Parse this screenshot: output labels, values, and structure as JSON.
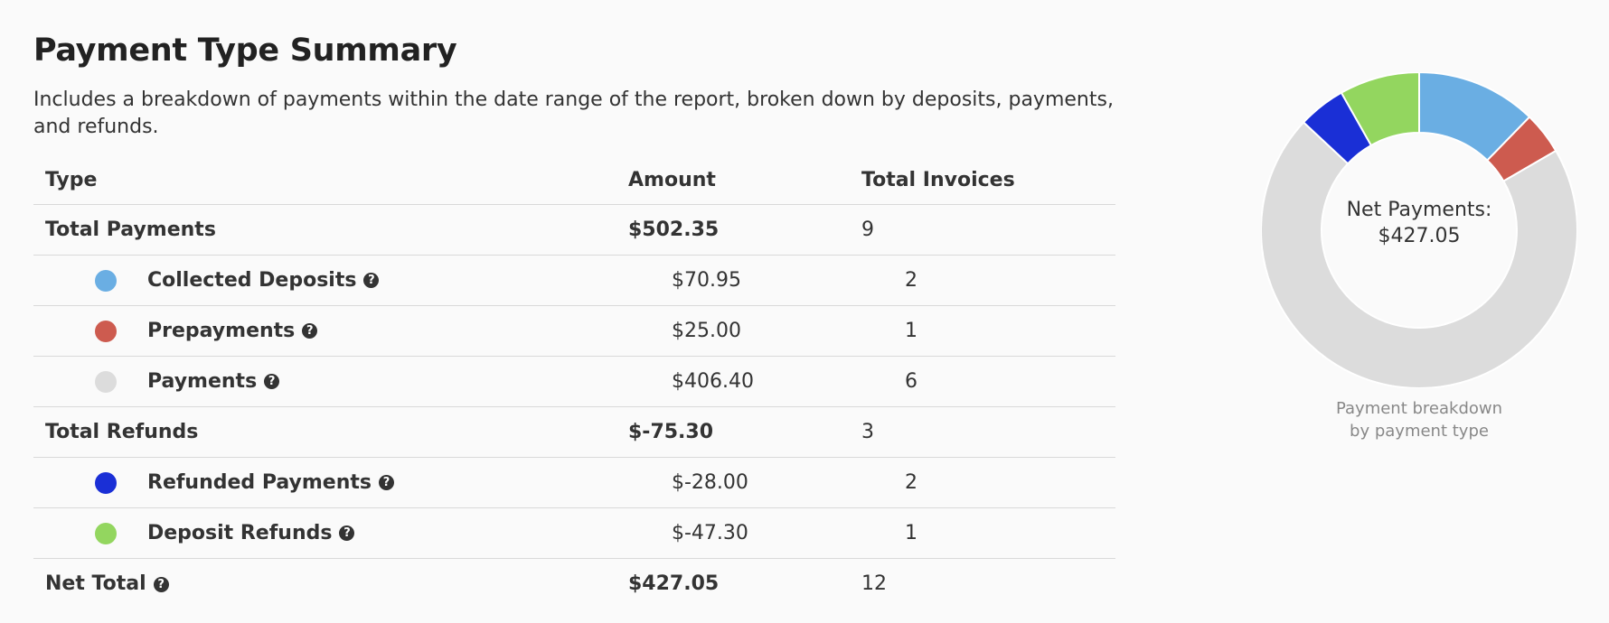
{
  "header": {
    "title": "Payment Type Summary",
    "description": "Includes a breakdown of payments within the date range of the report, broken down by deposits, payments, and refunds."
  },
  "table": {
    "columns": [
      "Type",
      "Amount",
      "Total Invoices"
    ],
    "rows": [
      {
        "label": "Total Payments",
        "amount": "$502.35",
        "count": "9",
        "kind": "total"
      },
      {
        "label": "Collected Deposits",
        "amount": "$70.95",
        "count": "2",
        "kind": "sub",
        "color": "#6aaee3",
        "help": true
      },
      {
        "label": "Prepayments",
        "amount": "$25.00",
        "count": "1",
        "kind": "sub",
        "color": "#cd5b4f",
        "help": true
      },
      {
        "label": "Payments",
        "amount": "$406.40",
        "count": "6",
        "kind": "sub",
        "color": "#dcdcdc",
        "help": true
      },
      {
        "label": "Total Refunds",
        "amount": "$-75.30",
        "count": "3",
        "kind": "total"
      },
      {
        "label": "Refunded Payments",
        "amount": "$-28.00",
        "count": "2",
        "kind": "sub",
        "color": "#1a2fd6",
        "help": true
      },
      {
        "label": "Deposit Refunds",
        "amount": "$-47.30",
        "count": "1",
        "kind": "sub",
        "color": "#93d65f",
        "help": true
      },
      {
        "label": "Net Total",
        "amount": "$427.05",
        "count": "12",
        "kind": "total",
        "help": true
      }
    ],
    "help_glyph": "?"
  },
  "donut": {
    "center_label": "Net Payments:",
    "center_value": "$427.05",
    "caption_line1": "Payment breakdown",
    "caption_line2": "by payment type",
    "slices": [
      {
        "name": "Collected Deposits",
        "value": 70.95,
        "color": "#6aaee3"
      },
      {
        "name": "Prepayments",
        "value": 25.0,
        "color": "#cd5b4f"
      },
      {
        "name": "Payments",
        "value": 406.4,
        "color": "#dcdcdc"
      },
      {
        "name": "Refunded Payments",
        "value": 28.0,
        "color": "#1a2fd6"
      },
      {
        "name": "Deposit Refunds",
        "value": 47.3,
        "color": "#93d65f"
      }
    ]
  }
}
